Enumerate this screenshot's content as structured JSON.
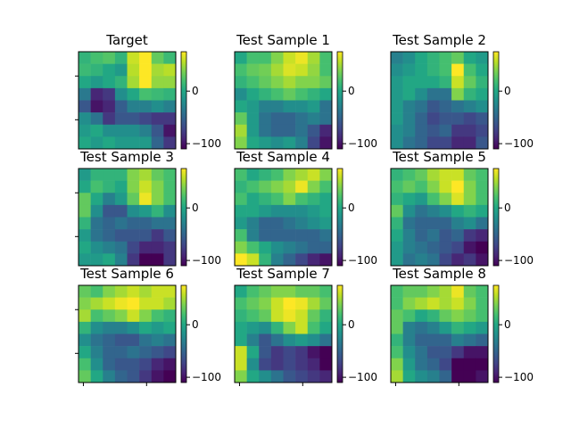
{
  "figure": {
    "background": "#ffffff"
  },
  "chart_data": {
    "type": "heatmap",
    "colormap": "viridis",
    "colorbar": {
      "vmin": -110,
      "vmax": 75,
      "ticks": [
        0,
        -100
      ],
      "tick_labels": [
        "0",
        "−100"
      ]
    },
    "grid": false,
    "panels": [
      {
        "title": "Target",
        "values": [
          [
            10,
            20,
            25,
            10,
            60,
            75,
            30,
            15
          ],
          [
            15,
            10,
            0,
            -10,
            55,
            75,
            50,
            55
          ],
          [
            0,
            -10,
            0,
            10,
            50,
            75,
            45,
            45
          ],
          [
            -35,
            -90,
            -80,
            -20,
            0,
            20,
            15,
            10
          ],
          [
            -60,
            -100,
            -90,
            -55,
            -30,
            -30,
            -20,
            -30
          ],
          [
            -20,
            -40,
            -80,
            -60,
            -60,
            -70,
            -80,
            -80
          ],
          [
            -10,
            0,
            -20,
            -20,
            -20,
            -30,
            -60,
            -100
          ],
          [
            0,
            -10,
            0,
            -10,
            -10,
            -10,
            -50,
            -80
          ]
        ]
      },
      {
        "title": "Test Sample 1",
        "values": [
          [
            0,
            20,
            20,
            40,
            60,
            70,
            50,
            20
          ],
          [
            20,
            30,
            35,
            50,
            65,
            60,
            45,
            20
          ],
          [
            10,
            20,
            30,
            40,
            50,
            40,
            40,
            30
          ],
          [
            -20,
            0,
            10,
            20,
            30,
            20,
            10,
            0
          ],
          [
            0,
            -10,
            -30,
            -30,
            -20,
            -20,
            -10,
            -40
          ],
          [
            30,
            -10,
            -40,
            -50,
            -50,
            -40,
            -30,
            -40
          ],
          [
            50,
            -10,
            -40,
            -50,
            -50,
            -40,
            -60,
            -90
          ],
          [
            40,
            0,
            -10,
            -20,
            -10,
            -30,
            -70,
            -100
          ]
        ]
      },
      {
        "title": "Test Sample 2",
        "values": [
          [
            -30,
            -20,
            0,
            10,
            20,
            30,
            0,
            -10
          ],
          [
            -20,
            -10,
            0,
            10,
            20,
            75,
            20,
            0
          ],
          [
            -10,
            0,
            0,
            0,
            10,
            60,
            30,
            10
          ],
          [
            -10,
            0,
            -20,
            -40,
            -40,
            40,
            10,
            0
          ],
          [
            -10,
            -30,
            -40,
            -60,
            -50,
            -40,
            -30,
            -20
          ],
          [
            -10,
            -30,
            -50,
            -70,
            -60,
            -60,
            -70,
            -60
          ],
          [
            -20,
            -30,
            -50,
            -60,
            -50,
            -80,
            -80,
            -70
          ],
          [
            -20,
            -40,
            -50,
            -70,
            -70,
            -90,
            -90,
            -60
          ]
        ]
      },
      {
        "title": "Test Sample 3",
        "values": [
          [
            -10,
            10,
            10,
            10,
            40,
            50,
            30,
            20
          ],
          [
            0,
            20,
            10,
            0,
            40,
            60,
            40,
            20
          ],
          [
            30,
            0,
            -30,
            -10,
            30,
            70,
            40,
            20
          ],
          [
            30,
            -20,
            -60,
            -60,
            -20,
            -10,
            10,
            -20
          ],
          [
            10,
            -40,
            -50,
            -40,
            -50,
            -50,
            -40,
            -40
          ],
          [
            -10,
            -40,
            -50,
            -60,
            -60,
            -60,
            -80,
            -60
          ],
          [
            0,
            -20,
            -30,
            -40,
            -70,
            -90,
            -90,
            -80
          ],
          [
            -10,
            -10,
            0,
            -30,
            -80,
            -110,
            -110,
            -80
          ]
        ]
      },
      {
        "title": "Test Sample 4",
        "values": [
          [
            20,
            0,
            10,
            20,
            40,
            50,
            60,
            40
          ],
          [
            10,
            20,
            30,
            40,
            50,
            70,
            40,
            20
          ],
          [
            20,
            0,
            10,
            20,
            40,
            20,
            10,
            0
          ],
          [
            0,
            0,
            -10,
            -20,
            -20,
            -20,
            -10,
            0
          ],
          [
            -10,
            -30,
            -50,
            -50,
            -40,
            -30,
            -20,
            -10
          ],
          [
            20,
            -30,
            -50,
            -50,
            -50,
            -50,
            -50,
            -40
          ],
          [
            40,
            20,
            0,
            -20,
            -30,
            -40,
            -50,
            -50
          ],
          [
            75,
            60,
            10,
            -30,
            -50,
            -70,
            -90,
            -100
          ]
        ]
      },
      {
        "title": "Test Sample 5",
        "values": [
          [
            10,
            20,
            30,
            50,
            60,
            60,
            30,
            20
          ],
          [
            20,
            30,
            20,
            40,
            60,
            75,
            40,
            20
          ],
          [
            10,
            0,
            -10,
            20,
            40,
            65,
            40,
            20
          ],
          [
            30,
            -20,
            -40,
            -30,
            -20,
            0,
            10,
            0
          ],
          [
            10,
            -40,
            -50,
            -50,
            -50,
            -30,
            -20,
            -40
          ],
          [
            0,
            -30,
            -50,
            -40,
            -60,
            -50,
            -80,
            -90
          ],
          [
            -10,
            -30,
            -40,
            -50,
            -60,
            -70,
            -100,
            -110
          ],
          [
            -10,
            -40,
            -30,
            -40,
            -70,
            -90,
            -80,
            -100
          ]
        ]
      },
      {
        "title": "Test Sample 6",
        "values": [
          [
            30,
            20,
            40,
            50,
            60,
            50,
            60,
            60
          ],
          [
            40,
            50,
            60,
            70,
            75,
            60,
            60,
            50
          ],
          [
            50,
            20,
            30,
            40,
            60,
            40,
            20,
            10
          ],
          [
            10,
            -20,
            -30,
            -30,
            -20,
            0,
            -10,
            0
          ],
          [
            -20,
            -40,
            -50,
            -60,
            -60,
            -40,
            -30,
            -40
          ],
          [
            0,
            -30,
            -50,
            -50,
            -40,
            -50,
            -60,
            -70
          ],
          [
            20,
            -20,
            -50,
            -60,
            -60,
            -70,
            -90,
            -100
          ],
          [
            30,
            0,
            -30,
            -50,
            -60,
            -80,
            -100,
            -110
          ]
        ]
      },
      {
        "title": "Test Sample 7",
        "values": [
          [
            0,
            20,
            30,
            40,
            40,
            30,
            30,
            20
          ],
          [
            20,
            30,
            40,
            60,
            75,
            70,
            50,
            30
          ],
          [
            10,
            20,
            30,
            60,
            70,
            60,
            30,
            10
          ],
          [
            0,
            -10,
            -20,
            10,
            40,
            60,
            20,
            0
          ],
          [
            0,
            -30,
            -60,
            -40,
            -20,
            -10,
            -20,
            -40
          ],
          [
            60,
            0,
            -60,
            -80,
            -70,
            -80,
            -100,
            -110
          ],
          [
            60,
            -20,
            -70,
            -80,
            -70,
            -80,
            -90,
            -110
          ],
          [
            40,
            0,
            -20,
            -40,
            -60,
            -70,
            -80,
            -90
          ]
        ]
      },
      {
        "title": "Test Sample 8",
        "values": [
          [
            20,
            30,
            30,
            40,
            50,
            70,
            30,
            20
          ],
          [
            20,
            40,
            50,
            60,
            50,
            60,
            40,
            20
          ],
          [
            30,
            20,
            0,
            10,
            30,
            40,
            30,
            20
          ],
          [
            30,
            -30,
            -40,
            -30,
            -10,
            10,
            0,
            -10
          ],
          [
            10,
            -30,
            -50,
            -50,
            -50,
            -30,
            -40,
            -50
          ],
          [
            20,
            -20,
            -40,
            -60,
            -60,
            -80,
            -100,
            -100
          ],
          [
            40,
            -10,
            -40,
            -50,
            -70,
            -110,
            -110,
            -110
          ],
          [
            50,
            0,
            -20,
            -30,
            -50,
            -110,
            -110,
            -100
          ]
        ]
      }
    ]
  }
}
